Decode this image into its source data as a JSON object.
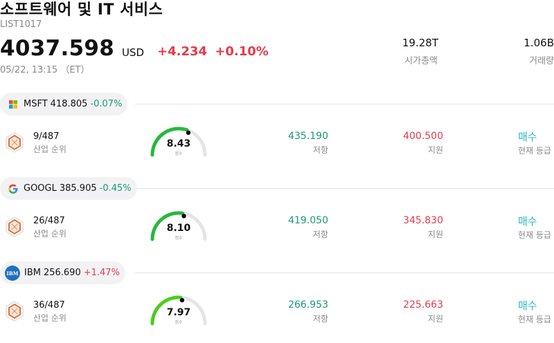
{
  "header": {
    "title": "소프트웨어 및 IT 서비스",
    "code": "LIST1017",
    "price": "4037.598",
    "currency": "USD",
    "change": "+4.234",
    "change_pct": "+0.10%",
    "timestamp": "05/22, 13:15 （ET）",
    "market_cap_value": "19.28T",
    "market_cap_label": "시가총액",
    "volume_value": "1.06B",
    "volume_label": "거래량"
  },
  "colors": {
    "negative": "#1a9a78",
    "positive": "#e8394a",
    "signal": "#2ab8c4"
  },
  "stocks": [
    {
      "ticker": "MSFT",
      "price": "418.805",
      "change_pct": "-0.07%",
      "logo_icon": "microsoft-logo-icon",
      "rank": "9/487",
      "rank_label": "산업 순위",
      "score": "8.43",
      "score_label": "점수",
      "score_fraction": 0.843,
      "resistance": "435.190",
      "resistance_label": "저항",
      "support": "400.500",
      "support_label": "지원",
      "signal": "매수",
      "signal_label": "현재 등급"
    },
    {
      "ticker": "GOOGL",
      "price": "385.905",
      "change_pct": "-0.45%",
      "logo_icon": "google-logo-icon",
      "rank": "26/487",
      "rank_label": "산업 순위",
      "score": "8.10",
      "score_label": "점수",
      "score_fraction": 0.81,
      "resistance": "419.050",
      "resistance_label": "저항",
      "support": "345.830",
      "support_label": "지원",
      "signal": "매수",
      "signal_label": "현재 등급"
    },
    {
      "ticker": "IBM",
      "price": "256.690",
      "change_pct": "+1.47%",
      "logo_icon": "ibm-logo-icon",
      "logo_text": "IBM",
      "rank": "36/487",
      "rank_label": "산업 순위",
      "score": "7.97",
      "score_label": "점수",
      "score_fraction": 0.797,
      "resistance": "266.953",
      "resistance_label": "저항",
      "support": "225.663",
      "support_label": "지원",
      "signal": "매수",
      "signal_label": "현재 등급"
    }
  ]
}
